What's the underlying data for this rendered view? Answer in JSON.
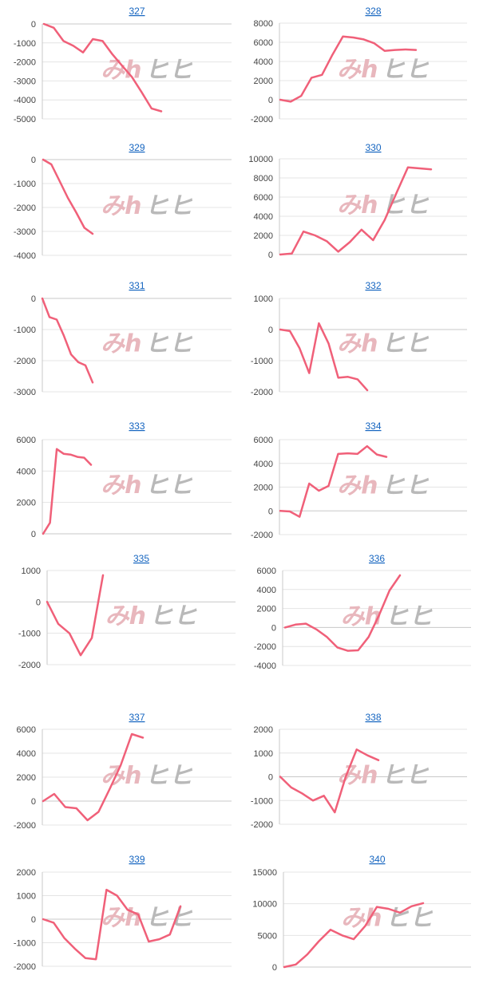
{
  "watermark": {
    "left": "みh",
    "right": "ヒヒ"
  },
  "colors": {
    "line": "#f06079",
    "title": "#1565c0",
    "grid": "#e4e4e4"
  },
  "chart_data": [
    {
      "type": "line",
      "title": "327",
      "ylim": [
        -5000,
        0
      ],
      "yticks": [
        0,
        -1000,
        -2000,
        -3000,
        -4000,
        -5000
      ],
      "values": [
        0,
        -200,
        -900,
        -1150,
        -1500,
        -800,
        -900,
        -1600,
        -2200,
        -2800,
        -3600,
        -4450,
        -4600
      ]
    },
    {
      "type": "line",
      "title": "328",
      "ylim": [
        -2000,
        8000
      ],
      "yticks": [
        8000,
        6000,
        4000,
        2000,
        0,
        -2000
      ],
      "values": [
        0,
        -200,
        400,
        2300,
        2600,
        4700,
        6600,
        6500,
        6300,
        5900,
        5100,
        5200,
        5250,
        5200
      ]
    },
    {
      "type": "line",
      "title": "329",
      "ylim": [
        -4000,
        0
      ],
      "yticks": [
        0,
        -1000,
        -2000,
        -3000,
        -4000
      ],
      "values": [
        0,
        -200,
        -900,
        -1600,
        -2200,
        -2850,
        -3100
      ]
    },
    {
      "type": "line",
      "title": "330",
      "ylim": [
        0,
        10000
      ],
      "yticks": [
        10000,
        8000,
        6000,
        4000,
        2000,
        0
      ],
      "values": [
        0,
        100,
        2400,
        2000,
        1400,
        300,
        1300,
        2600,
        1500,
        3600,
        6400,
        9100,
        9000,
        8900
      ]
    },
    {
      "type": "line",
      "title": "331",
      "ylim": [
        -3000,
        0
      ],
      "yticks": [
        0,
        -1000,
        -2000,
        -3000
      ],
      "values": [
        0,
        -600,
        -680,
        -1200,
        -1800,
        -2050,
        -2150,
        -2700
      ]
    },
    {
      "type": "line",
      "title": "332",
      "ylim": [
        -2000,
        1000
      ],
      "yticks": [
        1000,
        0,
        -1000,
        -2000
      ],
      "values": [
        0,
        -50,
        -600,
        -1400,
        200,
        -450,
        -1550,
        -1520,
        -1600,
        -1950
      ]
    },
    {
      "type": "line",
      "title": "333",
      "ylim": [
        0,
        6000
      ],
      "yticks": [
        6000,
        4000,
        2000,
        0
      ],
      "values": [
        0,
        700,
        5400,
        5100,
        5050,
        4900,
        4850,
        4400
      ]
    },
    {
      "type": "line",
      "title": "334",
      "ylim": [
        -2000,
        6000
      ],
      "yticks": [
        6000,
        4000,
        2000,
        0,
        -2000
      ],
      "values": [
        0,
        -50,
        -500,
        2300,
        1700,
        2100,
        4800,
        4850,
        4800,
        5450,
        4750,
        4550
      ]
    },
    {
      "type": "line",
      "title": "335",
      "ylim": [
        -2000,
        1000
      ],
      "yticks": [
        1000,
        0,
        -1000,
        -2000
      ],
      "values": [
        0,
        -700,
        -1000,
        -1700,
        -1150,
        850
      ]
    },
    {
      "type": "line",
      "title": "336",
      "ylim": [
        -4000,
        6000
      ],
      "yticks": [
        6000,
        4000,
        2000,
        0,
        -2000,
        -4000
      ],
      "values": [
        0,
        300,
        400,
        -200,
        -1000,
        -2100,
        -2450,
        -2400,
        -1000,
        1300,
        3900,
        5500
      ]
    },
    {
      "type": "line",
      "title": "337",
      "ylim": [
        -2000,
        6000
      ],
      "yticks": [
        6000,
        4000,
        2000,
        0,
        -2000
      ],
      "values": [
        0,
        600,
        -500,
        -600,
        -1600,
        -900,
        1000,
        3000,
        5600,
        5300
      ]
    },
    {
      "type": "line",
      "title": "338",
      "ylim": [
        -2000,
        2000
      ],
      "yticks": [
        2000,
        1000,
        0,
        -1000,
        -2000
      ],
      "values": [
        0,
        -450,
        -700,
        -1000,
        -800,
        -1500,
        0,
        1150,
        900,
        700
      ]
    },
    {
      "type": "line",
      "title": "339",
      "ylim": [
        -2000,
        2000
      ],
      "yticks": [
        2000,
        1000,
        0,
        -1000,
        -2000
      ],
      "values": [
        0,
        -150,
        -800,
        -1250,
        -1650,
        -1700,
        1250,
        1000,
        400,
        200,
        -950,
        -850,
        -650,
        550
      ]
    },
    {
      "type": "line",
      "title": "340",
      "ylim": [
        0,
        15000
      ],
      "yticks": [
        15000,
        10000,
        5000,
        0
      ],
      "values": [
        0,
        400,
        2000,
        4100,
        5900,
        5000,
        4400,
        6500,
        9500,
        9200,
        8600,
        9600,
        10100
      ]
    }
  ]
}
